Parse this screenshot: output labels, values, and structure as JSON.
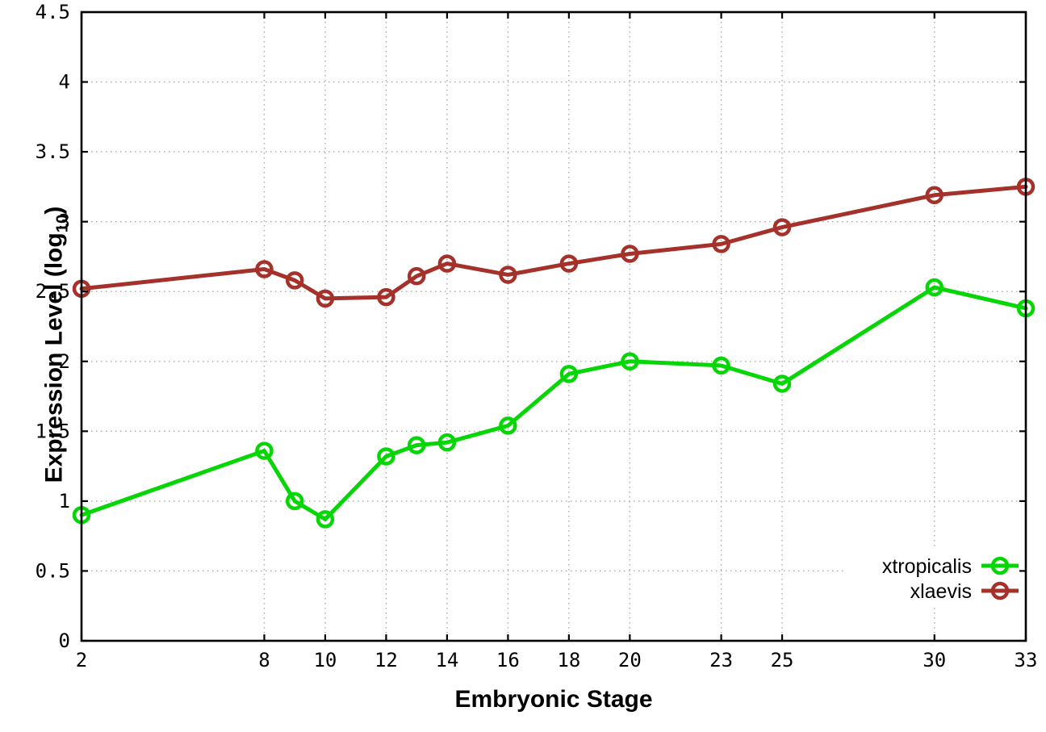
{
  "chart": {
    "xlabel": "Embryonic Stage",
    "ylabel_prefix": "Expression Level (log",
    "ylabel_sub": "10",
    "ylabel_suffix": ")"
  },
  "chart_data": {
    "type": "line",
    "title": "",
    "xlabel": "Embryonic Stage",
    "ylabel": "Expression Level (log10)",
    "xlim": [
      2,
      33
    ],
    "ylim": [
      0,
      4.5
    ],
    "x_ticks": [
      2,
      8,
      10,
      12,
      14,
      16,
      18,
      20,
      23,
      25,
      30,
      33
    ],
    "y_ticks": [
      0,
      0.5,
      1,
      1.5,
      2,
      2.5,
      3,
      3.5,
      4,
      4.5
    ],
    "y_tick_labels": [
      "0",
      "0.5",
      "1",
      "1.5",
      "2",
      "2.5",
      "3",
      "3.5",
      "4",
      "4.5"
    ],
    "grid": true,
    "grid_style": "dotted",
    "legend_position": "bottom-right-inside",
    "marker": "open-circle",
    "axis_color": "#000000",
    "grid_color": "#a8a8a8",
    "x": [
      2,
      8,
      9,
      10,
      12,
      13,
      14,
      16,
      18,
      20,
      23,
      25,
      30,
      33
    ],
    "series": [
      {
        "name": "xtropicalis",
        "color": "#06d506",
        "values": [
          0.9,
          1.36,
          1.0,
          0.87,
          1.32,
          1.4,
          1.42,
          1.54,
          1.91,
          2.0,
          1.97,
          1.84,
          2.53,
          2.38
        ]
      },
      {
        "name": "xlaevis",
        "color": "#a5312b",
        "values": [
          2.52,
          2.66,
          2.58,
          2.45,
          2.46,
          2.61,
          2.7,
          2.62,
          2.7,
          2.77,
          2.84,
          2.96,
          3.19,
          3.25
        ]
      }
    ]
  }
}
